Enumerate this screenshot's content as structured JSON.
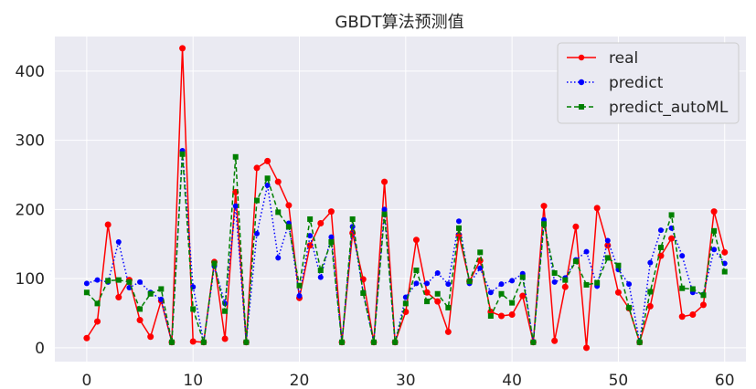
{
  "chart_data": {
    "type": "line",
    "title": "GBDT算法预测值",
    "xlabel": "",
    "ylabel": "",
    "xlim": [
      -3,
      62
    ],
    "ylim": [
      -20,
      450
    ],
    "x_ticks": [
      0,
      10,
      20,
      30,
      40,
      50,
      60
    ],
    "y_ticks": [
      0,
      100,
      200,
      300,
      400
    ],
    "grid": true,
    "background": "#eaeaf2",
    "legend_position": "top-right",
    "x": [
      0,
      1,
      2,
      3,
      4,
      5,
      6,
      7,
      8,
      9,
      10,
      11,
      12,
      13,
      14,
      15,
      16,
      17,
      18,
      19,
      20,
      21,
      22,
      23,
      24,
      25,
      26,
      27,
      28,
      29,
      30,
      31,
      32,
      33,
      34,
      35,
      36,
      37,
      38,
      39,
      40,
      41,
      42,
      43,
      44,
      45,
      46,
      47,
      48,
      49,
      50,
      51,
      52,
      53,
      54,
      55,
      56,
      57,
      58,
      59,
      60
    ],
    "series": [
      {
        "name": "real",
        "color": "#ff0000",
        "linestyle": "solid",
        "marker": "circle",
        "values": [
          14,
          38,
          178,
          73,
          98,
          40,
          16,
          68,
          8,
          433,
          9,
          8,
          124,
          13,
          225,
          8,
          260,
          270,
          240,
          206,
          72,
          148,
          180,
          197,
          8,
          166,
          99,
          8,
          240,
          8,
          52,
          156,
          80,
          67,
          23,
          163,
          96,
          126,
          52,
          46,
          48,
          75,
          8,
          205,
          10,
          88,
          175,
          0,
          202,
          148,
          80,
          57,
          8,
          60,
          133,
          158,
          45,
          48,
          62,
          197,
          138
        ]
      },
      {
        "name": "predict",
        "color": "#0000ff",
        "linestyle": "dotted",
        "marker": "circle",
        "values": [
          93,
          98,
          95,
          153,
          87,
          95,
          80,
          70,
          8,
          285,
          88,
          8,
          118,
          64,
          205,
          8,
          165,
          235,
          130,
          180,
          75,
          162,
          102,
          160,
          8,
          175,
          80,
          8,
          200,
          8,
          73,
          93,
          93,
          108,
          92,
          183,
          93,
          115,
          80,
          92,
          97,
          107,
          8,
          185,
          95,
          101,
          127,
          139,
          89,
          155,
          113,
          92,
          8,
          123,
          170,
          173,
          133,
          80,
          77,
          142,
          122
        ]
      },
      {
        "name": "predict_autoML",
        "color": "#008000",
        "linestyle": "dashed",
        "marker": "square",
        "values": [
          80,
          64,
          97,
          98,
          95,
          56,
          78,
          85,
          8,
          280,
          56,
          8,
          122,
          53,
          276,
          8,
          213,
          245,
          196,
          175,
          90,
          186,
          112,
          153,
          8,
          186,
          79,
          8,
          193,
          8,
          64,
          112,
          67,
          78,
          58,
          173,
          96,
          138,
          46,
          78,
          65,
          102,
          8,
          179,
          108,
          98,
          125,
          91,
          94,
          130,
          119,
          58,
          8,
          81,
          145,
          192,
          86,
          85,
          76,
          169,
          110
        ]
      }
    ]
  }
}
